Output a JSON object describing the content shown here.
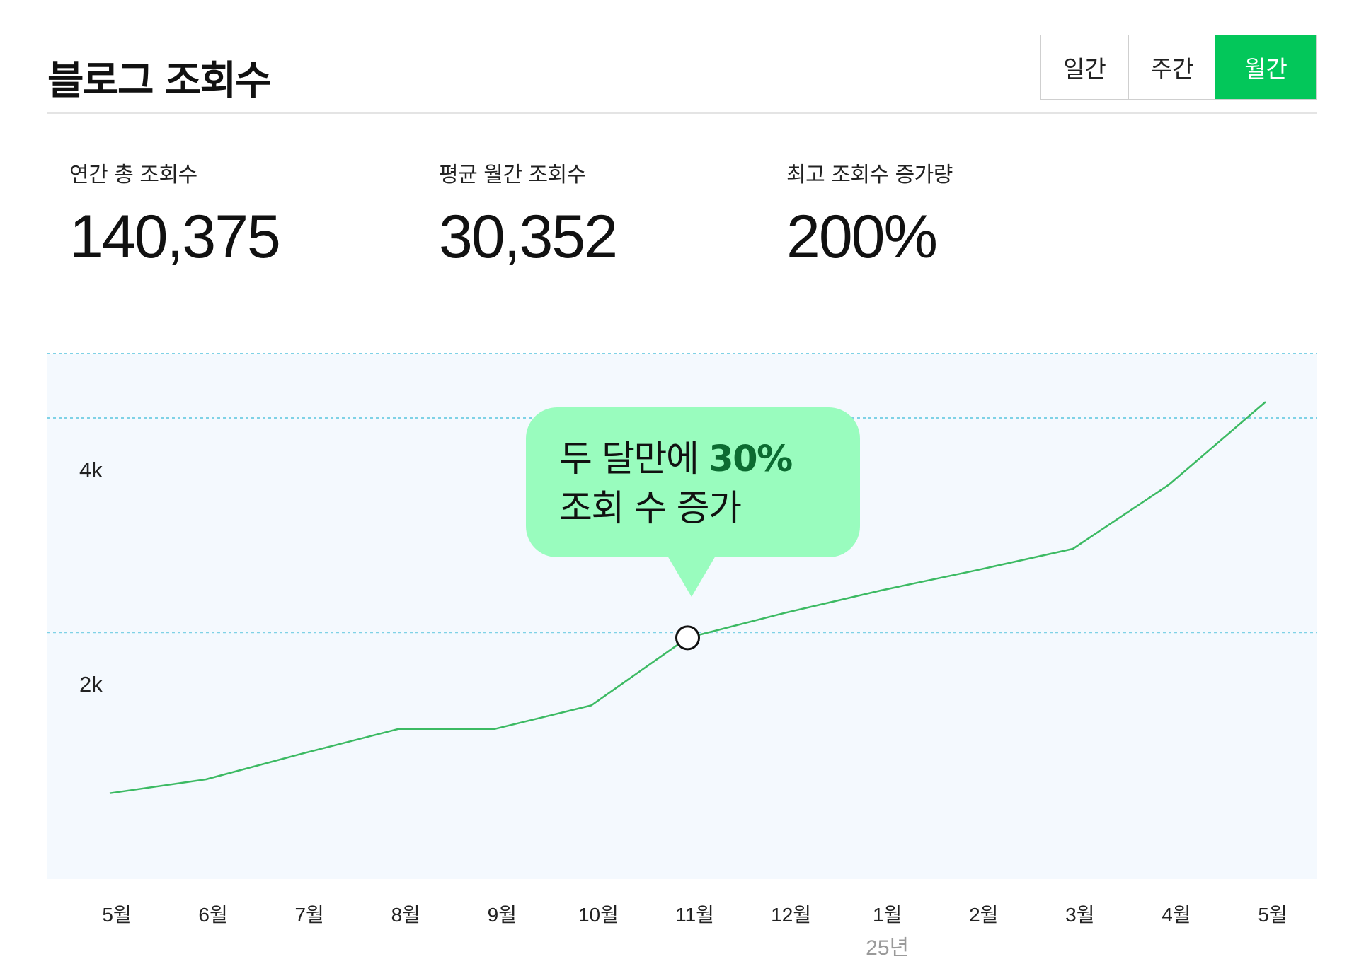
{
  "header": {
    "title": "블로그 조회수",
    "tabs": [
      {
        "label": "일간",
        "active": false
      },
      {
        "label": "주간",
        "active": false
      },
      {
        "label": "월간",
        "active": true
      }
    ]
  },
  "stats": [
    {
      "label": "연간 총 조회수",
      "value": "140,375"
    },
    {
      "label": "평균 월간 조회수",
      "value": "30,352"
    },
    {
      "label": "최고 조회수 증가량",
      "value": "200%"
    }
  ],
  "callout": {
    "line1_prefix": "두 달만에 ",
    "line1_highlight": "30%",
    "line2": "조회 수 증가"
  },
  "colors": {
    "accent": "#03c75a",
    "line": "#3cba63",
    "callout_bg": "#99fcbe",
    "callout_highlight": "#0c6b31",
    "plot_bg": "#f4f9fe",
    "gridline": "#7fd2e6"
  },
  "chart_data": {
    "type": "line",
    "title": "",
    "xlabel": "",
    "ylabel": "",
    "x_sublabel": "25년",
    "x_sublabel_under": "1월",
    "categories": [
      "5월",
      "6월",
      "7월",
      "8월",
      "9월",
      "10월",
      "11월",
      "12월",
      "1월",
      "2월",
      "3월",
      "4월",
      "5월"
    ],
    "values": [
      500,
      630,
      870,
      1100,
      1100,
      1320,
      1950,
      2180,
      2390,
      2580,
      2780,
      3380,
      4150
    ],
    "highlight_index": 6,
    "yticks": [
      {
        "value": 2000,
        "label": "2k"
      },
      {
        "value": 4000,
        "label": "4k"
      }
    ],
    "ylim": [
      -300,
      4600
    ],
    "grid": true
  }
}
